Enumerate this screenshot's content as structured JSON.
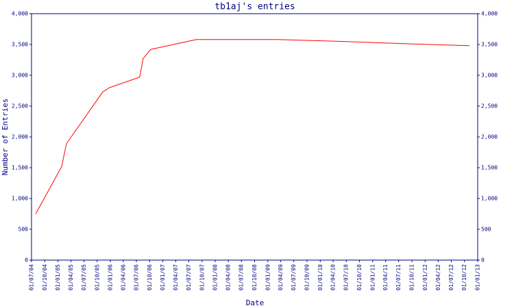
{
  "chart_data": {
    "type": "line",
    "title": "tb1aj's entries",
    "x_label": "Date",
    "y_label": "Number of Entries",
    "x": [
      "2004-07-30",
      "2005-01-27",
      "2005-03-01",
      "2005-11-09",
      "2005-12-26",
      "2006-07-24",
      "2006-08-17",
      "2006-10-08",
      "2007-08-23",
      "2009-03-08",
      "2010-06-02",
      "2011-09-23",
      "2012-11-06"
    ],
    "series": [
      {
        "name": "entries",
        "color": "#ff0000",
        "values": [
          750,
          1520,
          1890,
          2730,
          2800,
          2970,
          3270,
          3420,
          3580,
          3580,
          3550,
          3510,
          3480
        ]
      }
    ],
    "xlim": [
      "2004-07-01",
      "2013-01-01"
    ],
    "xticks": [
      {
        "value": "2004-07-01",
        "label": "01/07/04"
      },
      {
        "value": "2004-10-01",
        "label": "01/10/04"
      },
      {
        "value": "2005-01-01",
        "label": "01/01/05"
      },
      {
        "value": "2005-04-01",
        "label": "01/04/05"
      },
      {
        "value": "2005-07-01",
        "label": "01/07/05"
      },
      {
        "value": "2005-10-01",
        "label": "01/10/05"
      },
      {
        "value": "2006-01-01",
        "label": "01/01/06"
      },
      {
        "value": "2006-04-01",
        "label": "01/04/06"
      },
      {
        "value": "2006-07-01",
        "label": "01/07/06"
      },
      {
        "value": "2006-10-01",
        "label": "01/10/06"
      },
      {
        "value": "2007-01-01",
        "label": "01/01/07"
      },
      {
        "value": "2007-04-01",
        "label": "01/04/07"
      },
      {
        "value": "2007-07-01",
        "label": "01/07/07"
      },
      {
        "value": "2007-10-01",
        "label": "01/10/07"
      },
      {
        "value": "2008-01-01",
        "label": "01/01/08"
      },
      {
        "value": "2008-04-01",
        "label": "01/04/08"
      },
      {
        "value": "2008-07-01",
        "label": "01/07/08"
      },
      {
        "value": "2008-10-01",
        "label": "01/10/08"
      },
      {
        "value": "2009-01-01",
        "label": "01/01/09"
      },
      {
        "value": "2009-04-01",
        "label": "01/04/09"
      },
      {
        "value": "2009-07-01",
        "label": "01/07/09"
      },
      {
        "value": "2009-10-01",
        "label": "01/10/09"
      },
      {
        "value": "2010-01-01",
        "label": "01/01/10"
      },
      {
        "value": "2010-04-01",
        "label": "01/04/10"
      },
      {
        "value": "2010-07-01",
        "label": "01/07/10"
      },
      {
        "value": "2010-10-01",
        "label": "01/10/10"
      },
      {
        "value": "2011-01-01",
        "label": "01/01/11"
      },
      {
        "value": "2011-04-01",
        "label": "01/04/11"
      },
      {
        "value": "2011-07-01",
        "label": "01/07/11"
      },
      {
        "value": "2011-10-01",
        "label": "01/10/11"
      },
      {
        "value": "2012-01-01",
        "label": "01/01/12"
      },
      {
        "value": "2012-04-01",
        "label": "01/04/12"
      },
      {
        "value": "2012-07-01",
        "label": "01/07/12"
      },
      {
        "value": "2012-10-01",
        "label": "01/10/12"
      },
      {
        "value": "2013-01-01",
        "label": "01/01/13"
      }
    ],
    "ylim": [
      0,
      4000
    ],
    "yticks": [
      0,
      500,
      {
        "value": 1000,
        "label": "1,000"
      },
      {
        "value": 1500,
        "label": "1,500"
      },
      {
        "value": 2000,
        "label": "2,000"
      },
      {
        "value": 2500,
        "label": "2,500"
      },
      {
        "value": 3000,
        "label": "3,000"
      },
      {
        "value": 3500,
        "label": "3,500"
      },
      {
        "value": 4000,
        "label": "4,000"
      }
    ]
  }
}
